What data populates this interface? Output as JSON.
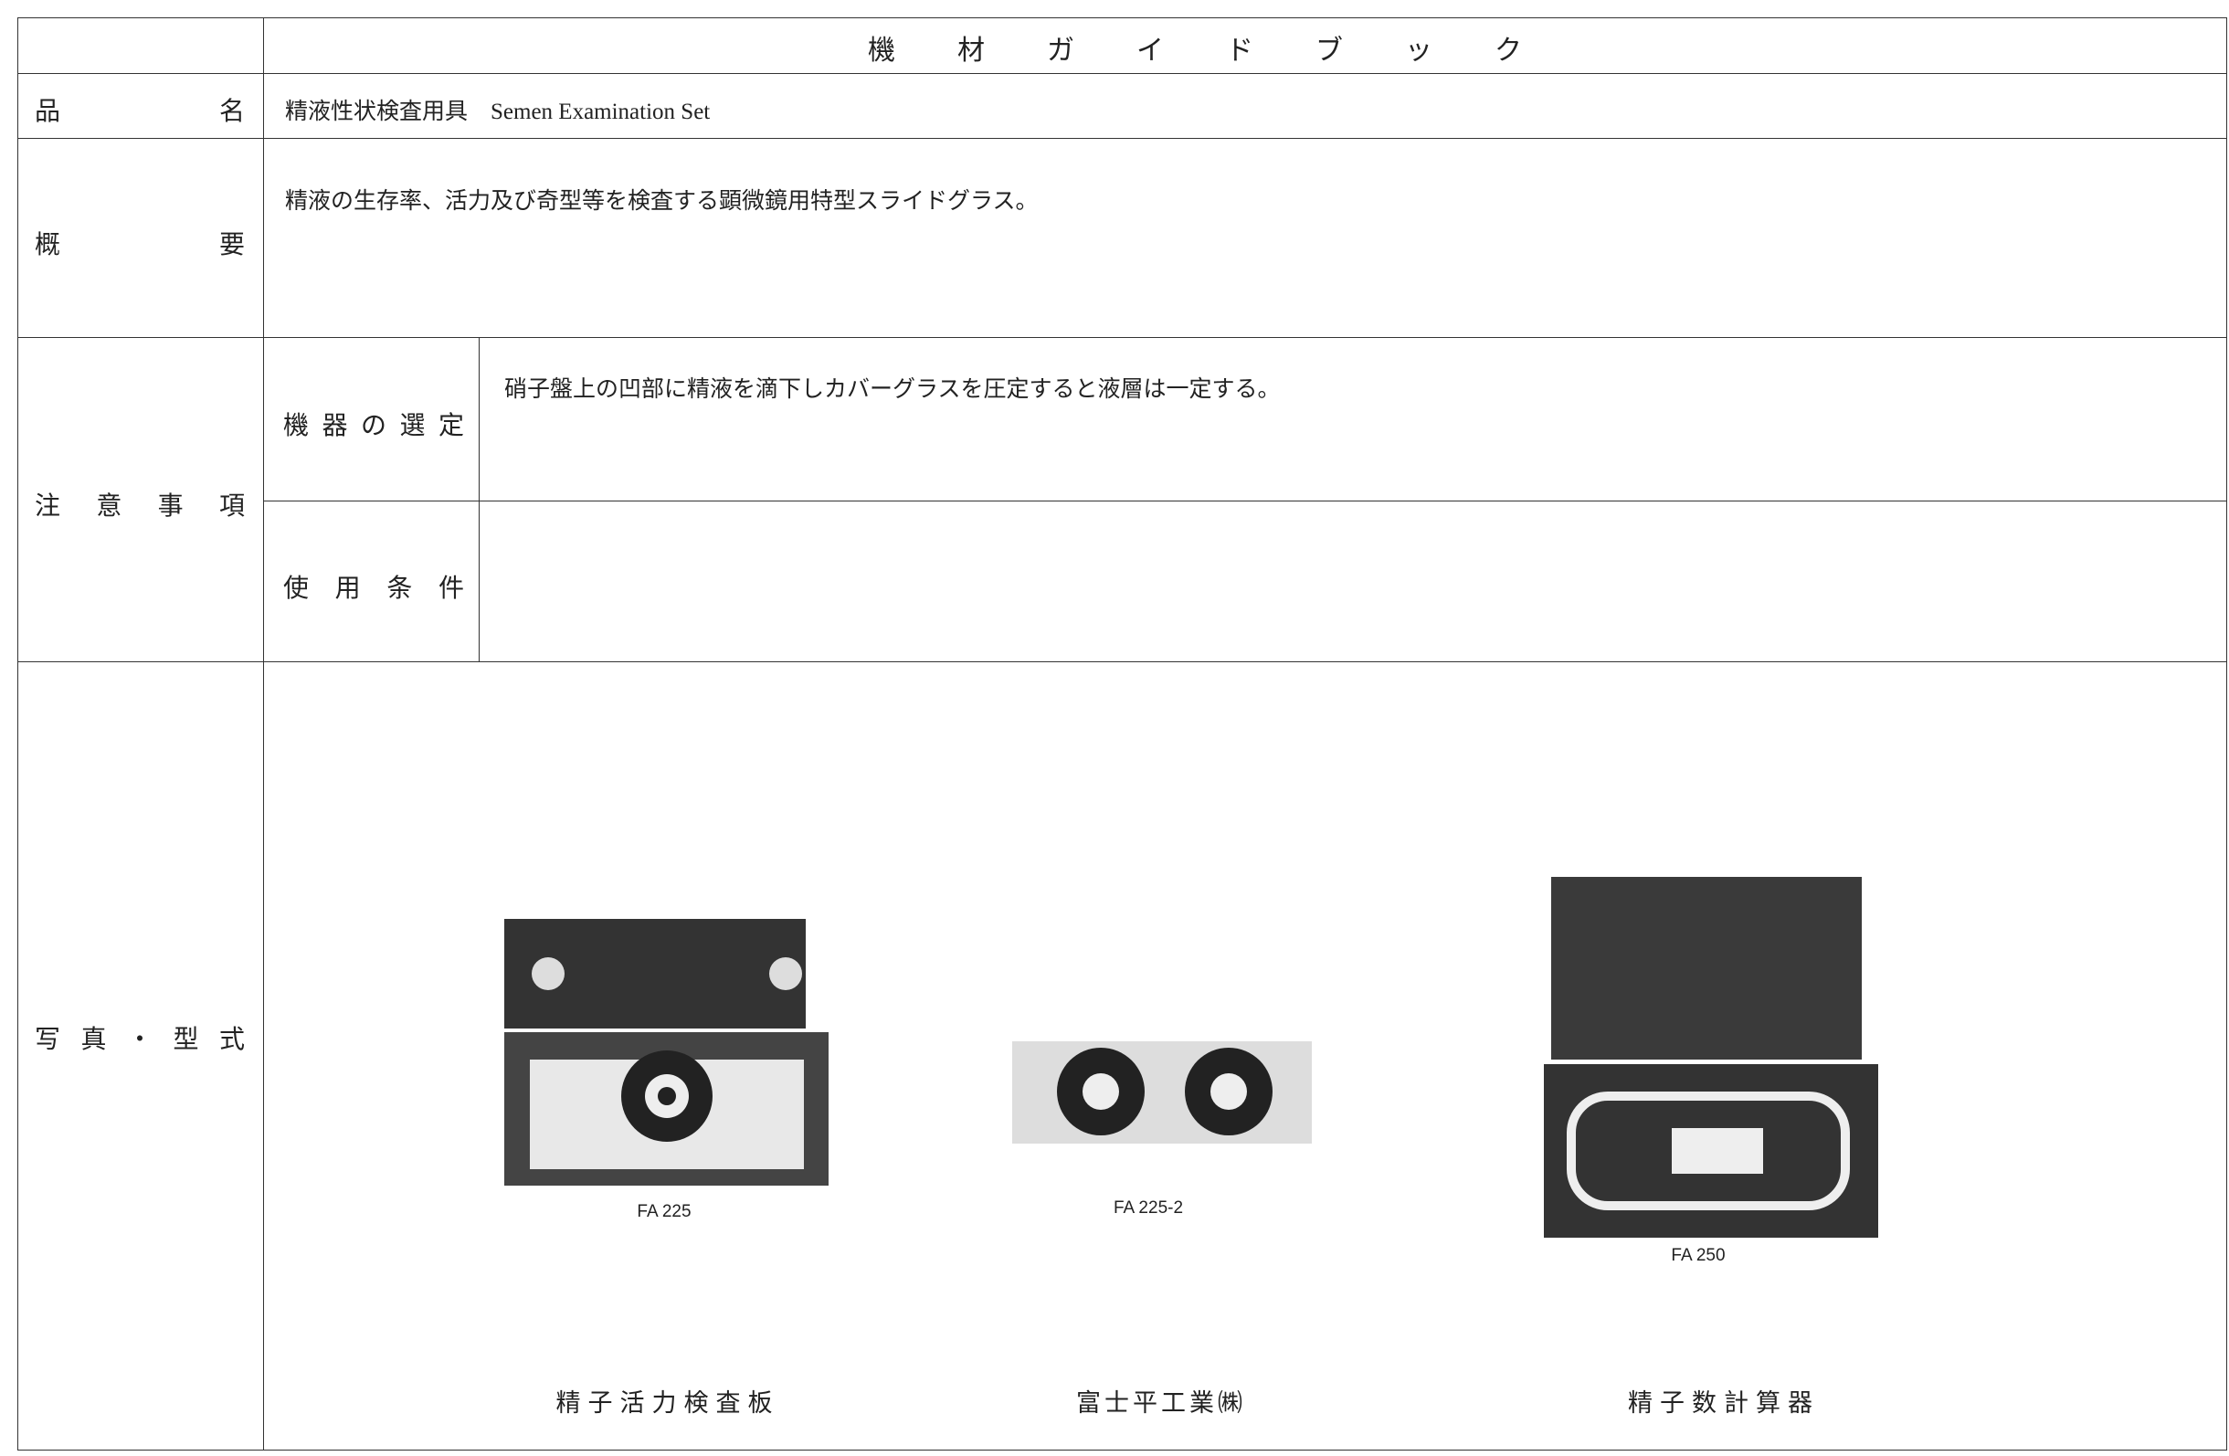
{
  "title": "機材ガイドブック",
  "product_name": {
    "label": "品名",
    "value": "精液性状検査用具　Semen Examination Set"
  },
  "overview": {
    "label": "概要",
    "value": "精液の生存率、活力及び奇型等を検査する顕微鏡用特型スライドグラス。"
  },
  "notes": {
    "label": "注意事項",
    "items": [
      {
        "label": "機器の選定",
        "value": "硝子盤上の凹部に精液を滴下しカバーグラスを圧定すると液層は一定する。"
      },
      {
        "label": "使用条件"
      }
    ]
  },
  "photos": {
    "label": "写真・型式",
    "items": [
      {
        "model": "FA 225",
        "caption": "精子活力検査板"
      },
      {
        "model": "FA 225-2"
      },
      {
        "model": "FA 250",
        "caption": "精子数計算器"
      }
    ],
    "manufacturer": "富士平工業㈱"
  }
}
